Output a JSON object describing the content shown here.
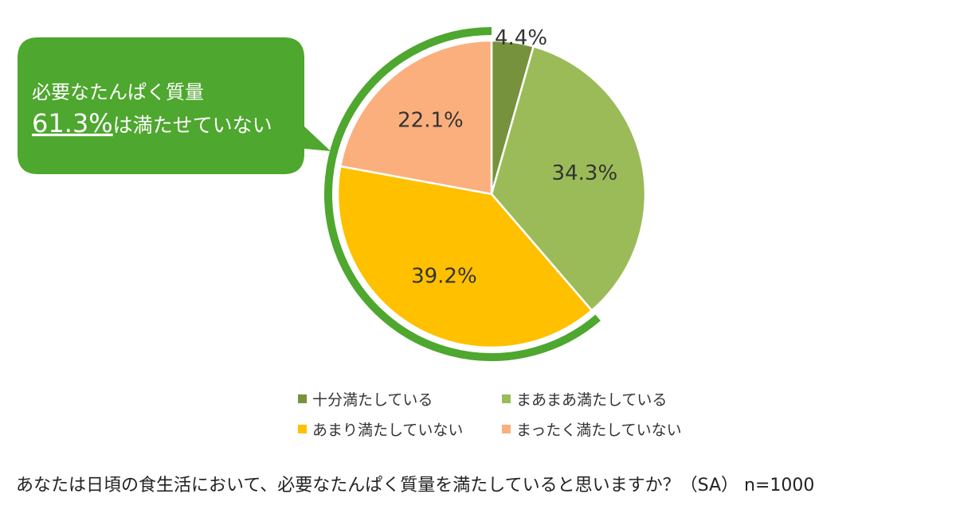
{
  "callout": {
    "line1": "必要なたんぱく質量",
    "highlight": "61.3%",
    "line2_rest": "は満たせていない",
    "color": "#4ea72e"
  },
  "chart_data": {
    "type": "pie",
    "slices": [
      {
        "label": "十分満たしている",
        "value": 4.4,
        "value_label": "4.4%",
        "color": "#76923c"
      },
      {
        "label": "まあまあ満たしている",
        "value": 34.3,
        "value_label": "34.3%",
        "color": "#9bbb59"
      },
      {
        "label": "あまり満たしていない",
        "value": 39.2,
        "value_label": "39.2%",
        "color": "#ffc000"
      },
      {
        "label": "まったく満たしていない",
        "value": 22.1,
        "value_label": "22.1%",
        "color": "#fbaf7d"
      }
    ],
    "legend_position": "bottom"
  },
  "question": "あなたは日頃の食生活において、必要なたんぱく質量を満たしていると思いますか？（SA）  n=1000"
}
